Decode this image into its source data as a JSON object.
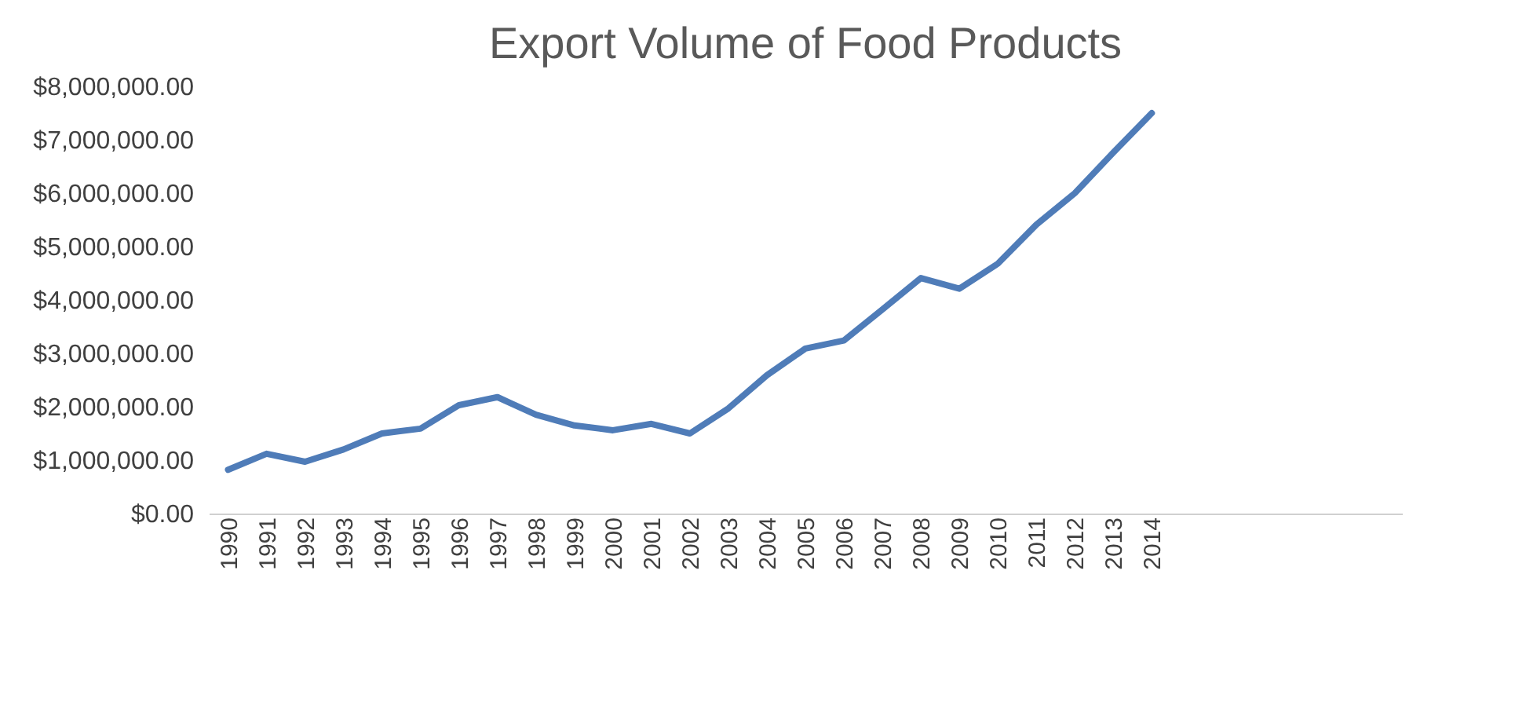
{
  "chart_data": {
    "type": "line",
    "title": "Export Volume of Food Products",
    "categories": [
      "1990",
      "1991",
      "1992",
      "1993",
      "1994",
      "1995",
      "1996",
      "1997",
      "1998",
      "1999",
      "2000",
      "2001",
      "2002",
      "2003",
      "2004",
      "2005",
      "2006",
      "2007",
      "2008",
      "2009",
      "2010",
      "2011",
      "2012",
      "2013",
      "2014"
    ],
    "series": [
      {
        "color": "#4f7cb8",
        "values": [
          820000,
          1120000,
          970000,
          1200000,
          1500000,
          1590000,
          2030000,
          2180000,
          1850000,
          1650000,
          1560000,
          1680000,
          1500000,
          1970000,
          2590000,
          3090000,
          3240000,
          3820000,
          4410000,
          4210000,
          4680000,
          5410000,
          6000000,
          6760000,
          7500000
        ]
      }
    ],
    "ylim": [
      0,
      8000000
    ],
    "yticks": [
      {
        "value": 0,
        "label": "$0.00"
      },
      {
        "value": 1000000,
        "label": "$1,000,000.00"
      },
      {
        "value": 2000000,
        "label": "$2,000,000.00"
      },
      {
        "value": 3000000,
        "label": "$3,000,000.00"
      },
      {
        "value": 4000000,
        "label": "$4,000,000.00"
      },
      {
        "value": 5000000,
        "label": "$5,000,000.00"
      },
      {
        "value": 6000000,
        "label": "$6,000,000.00"
      },
      {
        "value": 7000000,
        "label": "$7,000,000.00"
      },
      {
        "value": 8000000,
        "label": "$8,000,000.00"
      }
    ],
    "grid": false,
    "marker": "none",
    "line_style": "solid"
  }
}
